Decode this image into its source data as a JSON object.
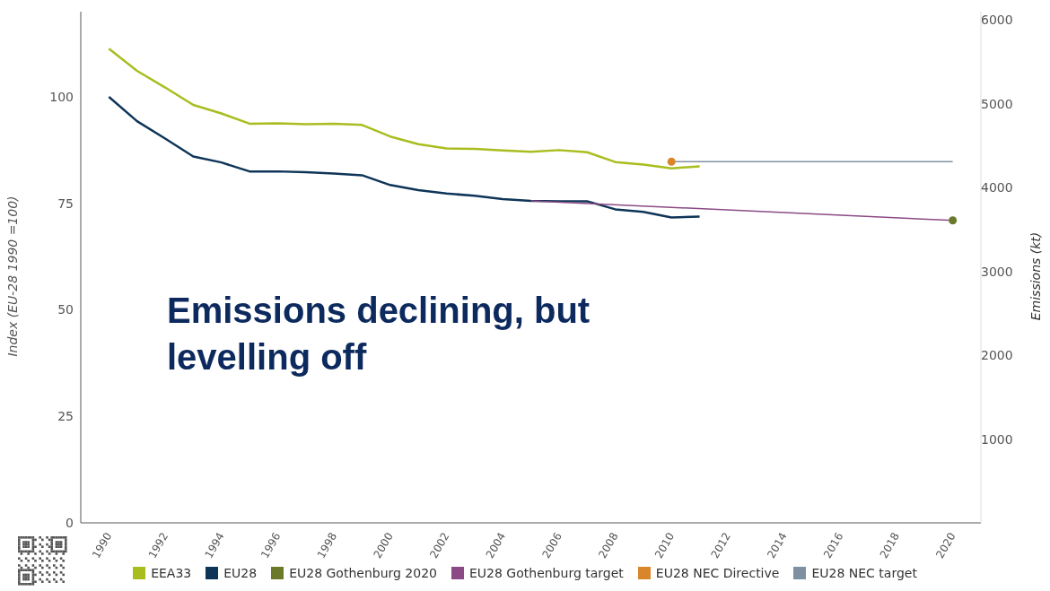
{
  "chart_data": {
    "type": "line",
    "annotations": [
      "Emissions declining, but levelling off"
    ],
    "ylabel": "Index (EU-28 1990 =100)",
    "y2label": "Emissions (kt)",
    "xlim": [
      1989,
      2021
    ],
    "xticks": [
      1990,
      1992,
      1994,
      1996,
      1998,
      2000,
      2002,
      2004,
      2006,
      2008,
      2010,
      2012,
      2014,
      2016,
      2018,
      2020
    ],
    "ylim": [
      0,
      120
    ],
    "yticks": [
      0,
      25,
      50,
      75,
      100
    ],
    "y2lim": [
      0,
      6100
    ],
    "y2ticks": [
      1000,
      2000,
      3000,
      4000,
      5000,
      6000
    ],
    "grid": false,
    "legend": "bottom",
    "marker": "none",
    "line_style": "solid",
    "series": [
      {
        "name": "EEA33",
        "color": "#a9bd1f",
        "x": [
          1990,
          1991,
          1992,
          1993,
          1994,
          1995,
          1996,
          1997,
          1998,
          1999,
          2000,
          2001,
          2002,
          2003,
          2004,
          2005,
          2006,
          2007,
          2008,
          2009,
          2010,
          2011
        ],
        "values": [
          111.3,
          106.1,
          102.2,
          98.1,
          96.1,
          93.7,
          93.8,
          93.6,
          93.7,
          93.4,
          90.7,
          88.9,
          87.9,
          87.8,
          87.4,
          87.1,
          87.5,
          87.0,
          84.7,
          84.1,
          83.2,
          83.7
        ]
      },
      {
        "name": "EU28",
        "color": "#0e3558",
        "x": [
          1990,
          1991,
          1992,
          1993,
          1994,
          1995,
          1996,
          1997,
          1998,
          1999,
          2000,
          2001,
          2002,
          2003,
          2004,
          2005,
          2006,
          2007,
          2008,
          2009,
          2010,
          2011
        ],
        "values": [
          100,
          94.3,
          90.2,
          86.0,
          84.6,
          82.5,
          82.5,
          82.3,
          82.0,
          81.6,
          79.3,
          78.1,
          77.3,
          76.8,
          76.0,
          75.6,
          75.5,
          75.5,
          73.6,
          73.0,
          71.7,
          71.9
        ]
      },
      {
        "name": "EU28 Gothenburg 2020",
        "type": "scatter",
        "marker": "circle",
        "color": "#6b7a2a",
        "x": [
          2020
        ],
        "values": [
          71.0
        ]
      },
      {
        "name": "EU28 Gothenburg target",
        "color": "#8b4a85",
        "x": [
          2005,
          2020
        ],
        "values": [
          75.6,
          71.0
        ]
      },
      {
        "name": "EU28 NEC Directive",
        "type": "scatter",
        "marker": "circle",
        "color": "#d9862a",
        "x": [
          2010
        ],
        "values": [
          84.8
        ]
      },
      {
        "name": "EU28 NEC target",
        "color": "#7f91a0",
        "x": [
          2010,
          2020
        ],
        "values": [
          84.8,
          84.8
        ]
      }
    ]
  }
}
